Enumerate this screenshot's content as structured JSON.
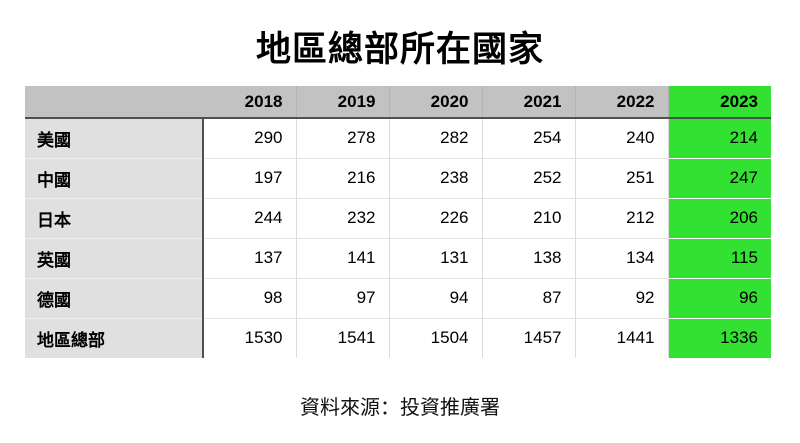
{
  "title": "地區總部所在國家",
  "source": "資料來源：投資推廣署",
  "colors": {
    "header_bg": "#c2c2c2",
    "row_label_bg": "#e0e0e0",
    "highlight_green": "#32e132",
    "dark_border": "#4f4f4f",
    "text": "#000000"
  },
  "chart_data": {
    "type": "table",
    "title": "地區總部所在國家",
    "columns": [
      "2018",
      "2019",
      "2020",
      "2021",
      "2022",
      "2023"
    ],
    "highlight_column": "2023",
    "rows": [
      {
        "label": "美國",
        "values": [
          290,
          278,
          282,
          254,
          240,
          214
        ]
      },
      {
        "label": "中國",
        "values": [
          197,
          216,
          238,
          252,
          251,
          247
        ]
      },
      {
        "label": "日本",
        "values": [
          244,
          232,
          226,
          210,
          212,
          206
        ]
      },
      {
        "label": "英國",
        "values": [
          137,
          141,
          131,
          138,
          134,
          115
        ]
      },
      {
        "label": "德國",
        "values": [
          98,
          97,
          94,
          87,
          92,
          96
        ]
      },
      {
        "label": "地區總部",
        "values": [
          1530,
          1541,
          1504,
          1457,
          1441,
          1336
        ]
      }
    ],
    "source": "資料來源：投資推廣署"
  }
}
